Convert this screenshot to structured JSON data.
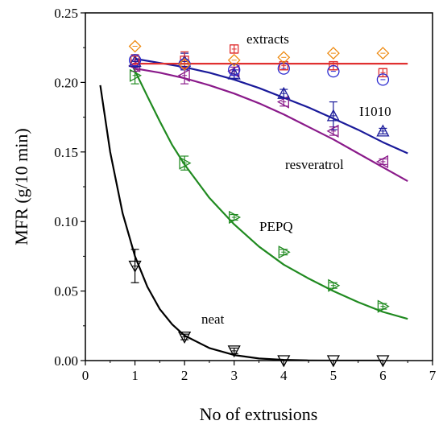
{
  "chart_data": {
    "type": "scatter",
    "xlabel": "No of extrusions",
    "ylabel": "MFR (g/10 min)",
    "xlim": [
      0,
      7
    ],
    "ylim": [
      0,
      0.25
    ],
    "x_ticks": [
      "0",
      "1",
      "2",
      "3",
      "4",
      "5",
      "6",
      "7"
    ],
    "y_ticks": [
      "0.00",
      "0.05",
      "0.10",
      "0.15",
      "0.20",
      "0.25"
    ],
    "grid": false,
    "series": [
      {
        "name": "neat",
        "color": "#000000",
        "marker": "triangle-down",
        "points": [
          [
            1,
            0.068
          ],
          [
            2,
            0.017
          ],
          [
            3,
            0.007
          ],
          [
            4,
            0.0
          ],
          [
            5,
            0.0
          ],
          [
            6,
            0.0
          ]
        ],
        "errors": [
          0.012,
          0.002,
          0.002,
          0,
          0,
          0
        ],
        "fit": [
          [
            0.3,
            0.198
          ],
          [
            0.5,
            0.15
          ],
          [
            0.75,
            0.106
          ],
          [
            1,
            0.075
          ],
          [
            1.25,
            0.053
          ],
          [
            1.5,
            0.037
          ],
          [
            1.75,
            0.026
          ],
          [
            2,
            0.018
          ],
          [
            2.5,
            0.009
          ],
          [
            3,
            0.004
          ],
          [
            3.5,
            0.0015
          ],
          [
            4,
            0.0005
          ],
          [
            4.5,
            0.0001
          ],
          [
            5,
            0.0
          ],
          [
            5.5,
            0.0
          ],
          [
            6,
            0.0
          ]
        ]
      },
      {
        "name": "PEPQ",
        "color": "#208a20",
        "marker": "triangle-right",
        "points": [
          [
            1,
            0.205
          ],
          [
            2,
            0.142
          ],
          [
            3,
            0.103
          ],
          [
            4,
            0.078
          ],
          [
            5,
            0.054
          ],
          [
            6,
            0.039
          ]
        ],
        "errors": [
          0.006,
          0.005,
          0.002,
          0.002,
          0.002,
          0.002
        ],
        "fit": [
          [
            0.95,
            0.212
          ],
          [
            1.25,
            0.19
          ],
          [
            1.5,
            0.172
          ],
          [
            1.75,
            0.155
          ],
          [
            2,
            0.141
          ],
          [
            2.5,
            0.117
          ],
          [
            3,
            0.098
          ],
          [
            3.5,
            0.082
          ],
          [
            4,
            0.069
          ],
          [
            4.5,
            0.059
          ],
          [
            5,
            0.05
          ],
          [
            5.5,
            0.042
          ],
          [
            6,
            0.035
          ],
          [
            6.5,
            0.03
          ]
        ]
      },
      {
        "name": "resveratrol",
        "color": "#8a1a8a",
        "marker": "triangle-left",
        "points": [
          [
            1,
            0.212
          ],
          [
            2,
            0.205
          ],
          [
            3,
            0.208
          ],
          [
            4,
            0.186
          ],
          [
            5,
            0.165
          ],
          [
            6,
            0.143
          ]
        ],
        "errors": [
          0.004,
          0.006,
          0.003,
          0.003,
          0.003,
          0.002
        ],
        "fit": [
          [
            1,
            0.21
          ],
          [
            1.5,
            0.207
          ],
          [
            2,
            0.203
          ],
          [
            2.5,
            0.198
          ],
          [
            3,
            0.192
          ],
          [
            3.5,
            0.185
          ],
          [
            4,
            0.177
          ],
          [
            4.5,
            0.168
          ],
          [
            5,
            0.159
          ],
          [
            5.5,
            0.149
          ],
          [
            6,
            0.139
          ],
          [
            6.5,
            0.129
          ]
        ]
      },
      {
        "name": "I1010",
        "color": "#1a1a9a",
        "marker": "triangle-up",
        "points": [
          [
            1,
            0.215
          ],
          [
            2,
            0.215
          ],
          [
            3,
            0.206
          ],
          [
            4,
            0.192
          ],
          [
            5,
            0.176
          ],
          [
            6,
            0.165
          ]
        ],
        "errors": [
          0.004,
          0.006,
          0.003,
          0.003,
          0.01,
          0.002
        ],
        "fit": [
          [
            1,
            0.217
          ],
          [
            1.5,
            0.214
          ],
          [
            2,
            0.211
          ],
          [
            2.5,
            0.207
          ],
          [
            3,
            0.202
          ],
          [
            3.5,
            0.196
          ],
          [
            4,
            0.189
          ],
          [
            4.5,
            0.182
          ],
          [
            5,
            0.174
          ],
          [
            5.5,
            0.166
          ],
          [
            6,
            0.157
          ],
          [
            6.5,
            0.149
          ]
        ]
      },
      {
        "name": "extracts",
        "color": "#e03030",
        "marker": "square",
        "points": [
          [
            1,
            0.216
          ],
          [
            2,
            0.216
          ],
          [
            3,
            0.224
          ],
          [
            4,
            0.212
          ],
          [
            5,
            0.212
          ],
          [
            6,
            0.207
          ]
        ],
        "errors": [
          0.004,
          0.006,
          0.003,
          0.003,
          0.003,
          0.003
        ],
        "fit": [
          [
            0.95,
            0.2135
          ],
          [
            6.5,
            0.2135
          ]
        ]
      },
      {
        "name": "",
        "color": "#2a2ad0",
        "marker": "circle",
        "points": [
          [
            1,
            0.216
          ],
          [
            2,
            0.213
          ],
          [
            3,
            0.209
          ],
          [
            4,
            0.21
          ],
          [
            5,
            0.208
          ],
          [
            6,
            0.202
          ]
        ],
        "errors": [
          0,
          0,
          0,
          0,
          0,
          0
        ],
        "fit": []
      },
      {
        "name": "",
        "color": "#ee8a10",
        "marker": "diamond",
        "points": [
          [
            1,
            0.226
          ],
          [
            2,
            0.213
          ],
          [
            3,
            0.216
          ],
          [
            4,
            0.218
          ],
          [
            5,
            0.221
          ],
          [
            6,
            0.221
          ]
        ],
        "errors": [
          0,
          0,
          0,
          0,
          0,
          0
        ],
        "fit": []
      }
    ],
    "annotations": [
      "extracts",
      "I1010",
      "resveratrol",
      "PEPQ",
      "neat"
    ]
  }
}
